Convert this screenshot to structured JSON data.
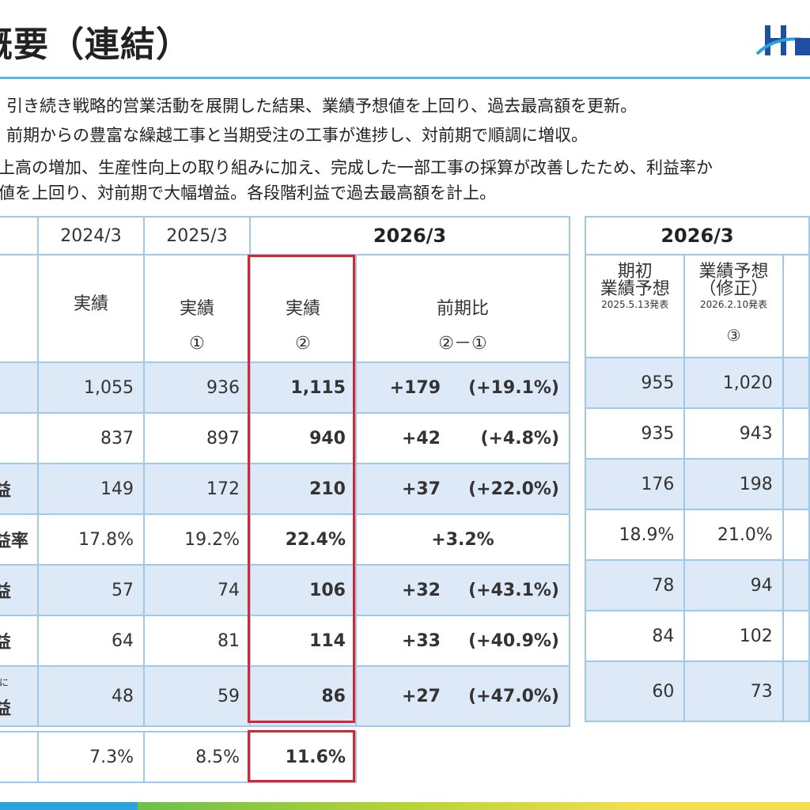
{
  "title": "概要（連結）",
  "bullets": [
    "引き続き戦略的営業活動を展開した結果、業績予想値を上回り、過去最高額を更新。",
    "前期からの豊富な繰越工事と当期受注の工事が進捗し、対前期で順調に増収。",
    "上高の増加、生産性向上の取り組みに加え、完成した一部工事の採算が改善したため、利益率か",
    "値を上回り、対前期で大幅増益。各段階利益で過去最高額を計上。"
  ],
  "main_table": {
    "headers": {
      "y2024": "2024/3",
      "y2025": "2025/3",
      "y2026": "2026/3"
    },
    "subheaders": {
      "actual": "実績",
      "circ1": "①",
      "circ2": "②",
      "yoy": "前期比",
      "yoy_formula": "②－①"
    },
    "rows": [
      {
        "label": "",
        "v2024": "1,055",
        "v2025": "936",
        "v2026": "1,115",
        "diff": "+179",
        "pct": "(+19.1%)"
      },
      {
        "label": "",
        "v2024": "837",
        "v2025": "897",
        "v2026": "940",
        "diff": "+42",
        "pct": "(+4.8%)"
      },
      {
        "label": "益",
        "v2024": "149",
        "v2025": "172",
        "v2026": "210",
        "diff": "+37",
        "pct": "(+22.0%)"
      },
      {
        "label": "益率",
        "v2024": "17.8%",
        "v2025": "19.2%",
        "v2026": "22.4%",
        "diff_single": "+3.2%"
      },
      {
        "label": "益",
        "v2024": "57",
        "v2025": "74",
        "v2026": "106",
        "diff": "+32",
        "pct": "(+43.1%)"
      },
      {
        "label": "益",
        "v2024": "64",
        "v2025": "81",
        "v2026": "114",
        "diff": "+33",
        "pct": "(+40.9%)"
      },
      {
        "label_top": "に",
        "label": "益",
        "v2024": "48",
        "v2025": "59",
        "v2026": "86",
        "diff": "+27",
        "pct": "(+47.0%)"
      }
    ],
    "extra_row": {
      "v2024": "7.3%",
      "v2025": "8.5%",
      "v2026": "11.6%"
    }
  },
  "forecast_table": {
    "header": "2026/3",
    "col1": {
      "line1": "期初",
      "line2": "業績予想",
      "date": "2025.5.13発表"
    },
    "col2": {
      "line1": "業績予想",
      "line2": "（修正）",
      "date": "2026.2.10発表",
      "num": "③"
    },
    "rows": [
      {
        "initial": "955",
        "revised": "1,020"
      },
      {
        "initial": "935",
        "revised": "943"
      },
      {
        "initial": "176",
        "revised": "198"
      },
      {
        "initial": "18.9%",
        "revised": "21.0%"
      },
      {
        "initial": "78",
        "revised": "94"
      },
      {
        "initial": "84",
        "revised": "102"
      },
      {
        "initial": "60",
        "revised": "73"
      }
    ]
  },
  "colors": {
    "accent": "#5ab4e5",
    "border": "#9fc9ea",
    "row_fill": "#dde9f6",
    "highlight": "#d9232d"
  }
}
